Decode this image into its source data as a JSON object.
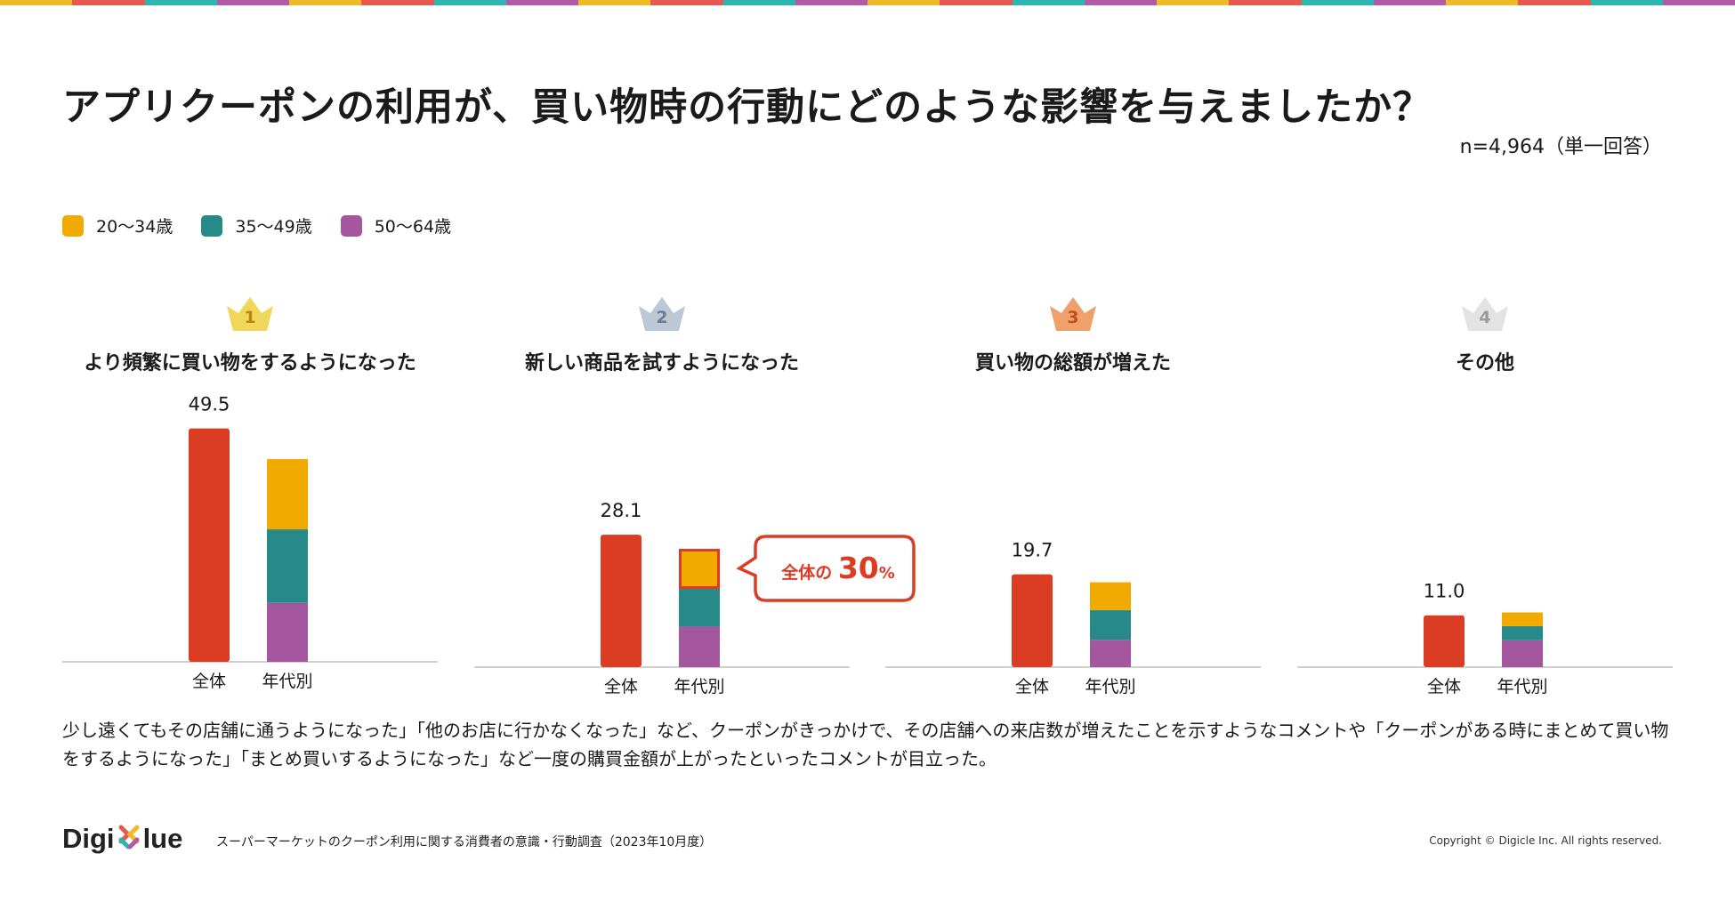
{
  "title": "アプリクーポンの利用が、買い物時の行動にどのような影響を与えましたか？",
  "sample_note": "n=4,964（単一回答）",
  "colors": {
    "overall": "#db3c24",
    "age_20_34": "#f0aa00",
    "age_35_49": "#288a88",
    "age_50_64": "#a4569e",
    "gold": "#f0d75a",
    "silver": "#bcc8d6",
    "bronze": "#efa06b",
    "plain": "#e3e3e3",
    "callout": "#db3c24"
  },
  "topbar_colors": [
    "#f0b928",
    "#e8584f",
    "#2bb6b0",
    "#b05aa8",
    "#f0b928",
    "#e8584f",
    "#2bb6b0",
    "#b05aa8",
    "#f0b928",
    "#e8584f",
    "#2bb6b0",
    "#b05aa8",
    "#f0b928",
    "#e8584f",
    "#2bb6b0",
    "#b05aa8",
    "#f0b928",
    "#e8584f",
    "#2bb6b0",
    "#b05aa8",
    "#f0b928",
    "#e8584f",
    "#2bb6b0",
    "#b05aa8"
  ],
  "legend": [
    {
      "label": "20〜34歳",
      "color": "#f0aa00"
    },
    {
      "label": "35〜49歳",
      "color": "#288a88"
    },
    {
      "label": "50〜64歳",
      "color": "#a4569e"
    }
  ],
  "chart_data": {
    "type": "bar",
    "unit": "%",
    "category_labels": [
      "全体",
      "年代別"
    ],
    "series_names": [
      "20〜34歳",
      "35〜49歳",
      "50〜64歳"
    ],
    "groups": [
      {
        "rank": "1",
        "badge": "gold",
        "label": "より頻繁に買い物をするようになった",
        "overall": 49.5,
        "overall_label": "49.5",
        "age_segments": [
          14.9,
          15.6,
          12.5
        ]
      },
      {
        "rank": "2",
        "badge": "silver",
        "label": "新しい商品を試すようになった",
        "overall": 28.1,
        "overall_label": "28.1",
        "age_segments": [
          8.5,
          8.0,
          8.6
        ],
        "highlight_segment": 0
      },
      {
        "rank": "3",
        "badge": "bronze",
        "label": "買い物の総額が増えた",
        "overall": 19.7,
        "overall_label": "19.7",
        "age_segments": [
          5.9,
          6.3,
          5.8
        ]
      },
      {
        "rank": "4",
        "badge": "plain",
        "label": "その他",
        "overall": 11.0,
        "overall_label": "11.0",
        "age_segments": [
          2.9,
          3.0,
          5.7
        ]
      }
    ],
    "callout": {
      "prefix": "全体の",
      "value": "30",
      "suffix": "%"
    }
  },
  "comment": "少し遠くてもその店舗に通うようになった」「他のお店に行かなくなった」など、クーポンがきっかけで、その店舗への来店数が増えたことを示すようなコメントや「クーポンがある時にまとめて買い物をするようになった」「まとめ買いするようになった」など一度の購買金額が上がったといったコメントが目立った。",
  "footer": {
    "logo_left": "Digi",
    "logo_right": "lue",
    "source": "スーパーマーケットのクーポン利用に関する消費者の意識・行動調査（2023年10月度）",
    "copyright": "Copyright © Digicle Inc. All rights reserved."
  }
}
